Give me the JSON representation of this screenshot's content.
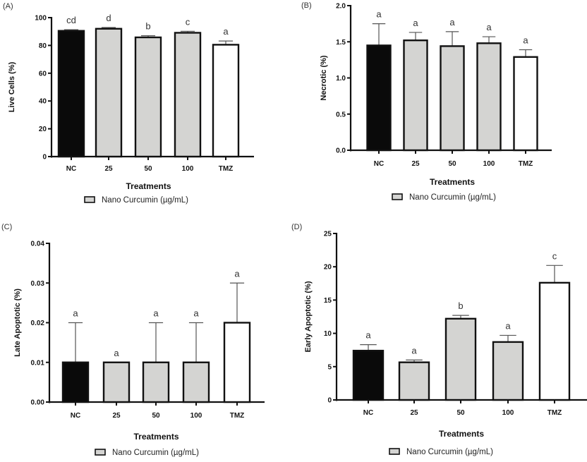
{
  "chart_data": [
    {
      "panel": "(A)",
      "type": "bar",
      "title": "",
      "xlabel": "Treatments",
      "ylabel": "Live Cells (%)",
      "ylim": [
        0,
        100
      ],
      "yticks": [
        0,
        20,
        40,
        60,
        80,
        100
      ],
      "ytick_labels": [
        "0",
        "20",
        "40",
        "60",
        "80",
        "100"
      ],
      "categories": [
        "NC",
        "25",
        "50",
        "100",
        "TMZ"
      ],
      "values": [
        90.5,
        92.0,
        85.8,
        89.1,
        80.5
      ],
      "error_upper": [
        91.3,
        92.9,
        87.0,
        90.2,
        83.2
      ],
      "significance": [
        "cd",
        "d",
        "b",
        "c",
        "a"
      ],
      "fills": [
        "#0a0a0a",
        "#d4d4d2",
        "#d4d4d2",
        "#d4d4d2",
        "#ffffff"
      ],
      "legend": "Nano Curcumin (µg/mL)",
      "legend_position": "bottom",
      "grid": false
    },
    {
      "panel": "(B)",
      "type": "bar",
      "title": "",
      "xlabel": "Treatments",
      "ylabel": "Necrotic (%)",
      "ylim": [
        0,
        2.0
      ],
      "yticks": [
        0,
        0.5,
        1.0,
        1.5,
        2.0
      ],
      "ytick_labels": [
        "0.0",
        "0.5",
        "1.0",
        "1.5",
        "2.0"
      ],
      "categories": [
        "NC",
        "25",
        "50",
        "100",
        "TMZ"
      ],
      "values": [
        1.45,
        1.52,
        1.44,
        1.48,
        1.29
      ],
      "error_upper": [
        1.75,
        1.63,
        1.64,
        1.57,
        1.39
      ],
      "significance": [
        "a",
        "a",
        "a",
        "a",
        "a"
      ],
      "fills": [
        "#0a0a0a",
        "#d4d4d2",
        "#d4d4d2",
        "#d4d4d2",
        "#ffffff"
      ],
      "legend": "Nano Curcumin (µg/mL)",
      "legend_position": "bottom",
      "grid": false
    },
    {
      "panel": "(C)",
      "type": "bar",
      "title": "",
      "xlabel": "Treatments",
      "ylabel": "Late Apoptotic (%)",
      "ylim": [
        0,
        0.04
      ],
      "yticks": [
        0,
        0.01,
        0.02,
        0.03,
        0.04
      ],
      "ytick_labels": [
        "0.00",
        "0.01",
        "0.02",
        "0.03",
        "0.04"
      ],
      "categories": [
        "NC",
        "25",
        "50",
        "100",
        "TMZ"
      ],
      "values": [
        0.01,
        0.01,
        0.01,
        0.01,
        0.02
      ],
      "error_upper": [
        0.02,
        0.01,
        0.02,
        0.02,
        0.03
      ],
      "significance": [
        "a",
        "a",
        "a",
        "a",
        "a"
      ],
      "fills": [
        "#0a0a0a",
        "#d4d4d2",
        "#d4d4d2",
        "#d4d4d2",
        "#ffffff"
      ],
      "legend": "Nano Curcumin (µg/mL)",
      "legend_position": "bottom",
      "grid": false
    },
    {
      "panel": "(D)",
      "type": "bar",
      "title": "",
      "xlabel": "Treatments",
      "ylabel": "Early Apoptotic (%)",
      "ylim": [
        0,
        25
      ],
      "yticks": [
        0,
        5,
        10,
        15,
        20,
        25
      ],
      "ytick_labels": [
        "0",
        "5",
        "10",
        "15",
        "20",
        "25"
      ],
      "categories": [
        "NC",
        "25",
        "50",
        "100",
        "TMZ"
      ],
      "values": [
        7.4,
        5.65,
        12.2,
        8.7,
        17.6
      ],
      "error_upper": [
        8.3,
        6.0,
        12.7,
        9.7,
        20.2
      ],
      "significance": [
        "a",
        "a",
        "b",
        "a",
        "c"
      ],
      "fills": [
        "#0a0a0a",
        "#d4d4d2",
        "#d4d4d2",
        "#d4d4d2",
        "#ffffff"
      ],
      "legend": "Nano Curcumin (µg/mL)",
      "legend_position": "bottom",
      "grid": false
    }
  ]
}
